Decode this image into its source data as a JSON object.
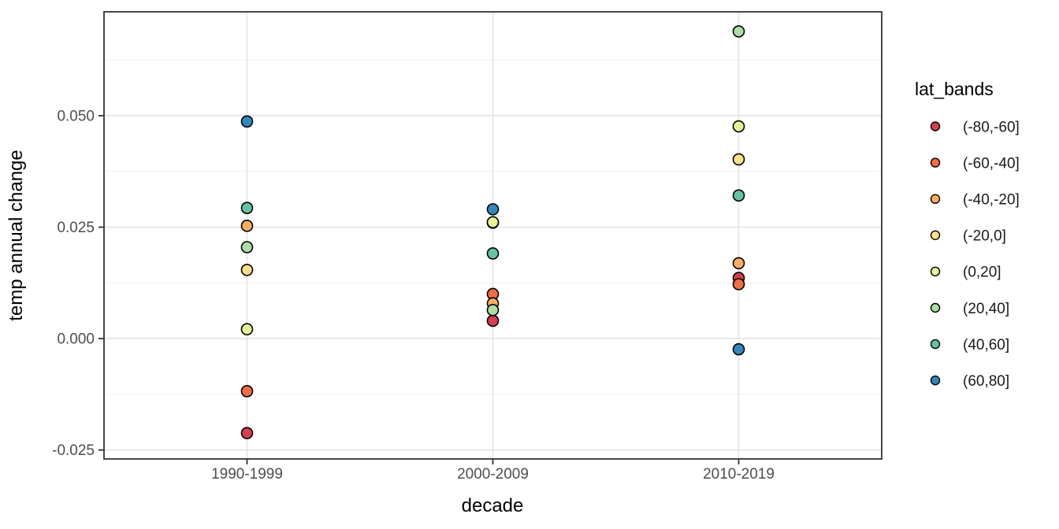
{
  "chart_data": {
    "type": "scatter",
    "title": "",
    "xlabel": "decade",
    "ylabel": "temp annual change",
    "legend_title": "lat_bands",
    "legend_position": "right",
    "categories": [
      "1990-1999",
      "2000-2009",
      "2010-2019"
    ],
    "y_ticks": [
      0.05,
      0.025,
      0.0,
      -0.025
    ],
    "y_tick_labels": [
      "0.050",
      "0.025",
      "0.000",
      "-0.025"
    ],
    "y_minor_gridlines": [
      0.0625,
      0.0375,
      0.0125,
      -0.0125
    ],
    "ylim": [
      -0.027,
      0.0733
    ],
    "grid": "major-and-minor-horizontal, major-vertical-at-categories",
    "point_outline_color": "#000000",
    "series": [
      {
        "name": "(-80,-60]",
        "color": "#D53E4F",
        "values": [
          -0.0212,
          0.004,
          0.0136
        ]
      },
      {
        "name": "(-60,-40]",
        "color": "#F46D43",
        "values": [
          -0.0118,
          0.01,
          0.0122
        ]
      },
      {
        "name": "(-40,-20]",
        "color": "#FDAE61",
        "values": [
          0.0253,
          0.0079,
          0.0169
        ]
      },
      {
        "name": "(-20,0]",
        "color": "#FEE08B",
        "values": [
          0.0154,
          0.026,
          0.0402
        ]
      },
      {
        "name": "(0,20]",
        "color": "#E6F598",
        "values": [
          0.0021,
          0.0261,
          0.0476
        ]
      },
      {
        "name": "(20,40]",
        "color": "#ABDDA4",
        "values": [
          0.0205,
          0.0064,
          0.0689
        ]
      },
      {
        "name": "(40,60]",
        "color": "#66C2A5",
        "values": [
          0.0293,
          0.0191,
          0.0321
        ]
      },
      {
        "name": "(60,80]",
        "color": "#3288BD",
        "values": [
          0.0487,
          0.029,
          -0.0024
        ]
      }
    ],
    "style_colors": {
      "panel_background": "#ffffff",
      "panel_border": "#333333",
      "grid_major": "#e4e4e4",
      "grid_minor": "#f0f0f0",
      "tick_mark": "#333333",
      "tick_text": "#4d4d4d"
    }
  }
}
